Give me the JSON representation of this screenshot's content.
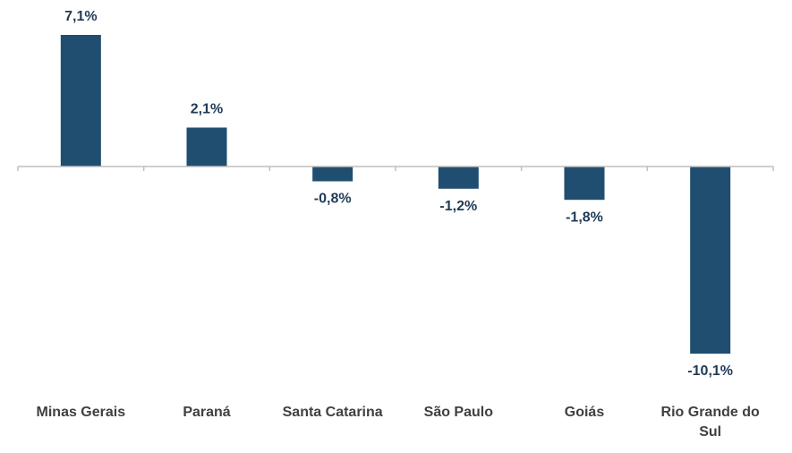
{
  "chart_data": {
    "type": "bar",
    "categories": [
      "Minas Gerais",
      "Paraná",
      "Santa Catarina",
      "São Paulo",
      "Goiás",
      "Rio Grande do Sul"
    ],
    "values": [
      7.1,
      2.1,
      -0.8,
      -1.2,
      -1.8,
      -10.1
    ],
    "value_labels": [
      "7,1%",
      "2,1%",
      "-0,8%",
      "-1,2%",
      "-1,8%",
      "-10,1%"
    ],
    "color": "#1f4e70"
  }
}
